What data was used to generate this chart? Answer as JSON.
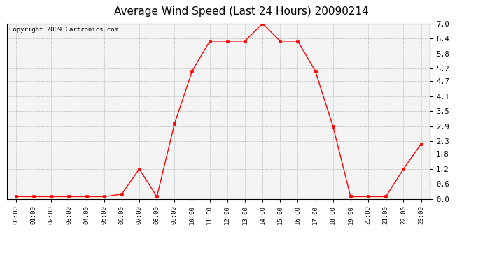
{
  "title": "Average Wind Speed (Last 24 Hours) 20090214",
  "copyright": "Copyright 2009 Cartronics.com",
  "x_labels": [
    "00:00",
    "01:00",
    "02:00",
    "03:00",
    "04:00",
    "05:00",
    "06:00",
    "07:00",
    "08:00",
    "09:00",
    "10:00",
    "11:00",
    "12:00",
    "13:00",
    "14:00",
    "15:00",
    "16:00",
    "17:00",
    "18:00",
    "19:00",
    "20:00",
    "21:00",
    "22:00",
    "23:00"
  ],
  "y_values": [
    0.1,
    0.1,
    0.1,
    0.1,
    0.1,
    0.1,
    0.2,
    1.2,
    0.1,
    3.0,
    5.1,
    6.3,
    6.3,
    6.3,
    7.0,
    6.3,
    6.3,
    5.1,
    2.9,
    0.1,
    0.1,
    0.1,
    1.2,
    2.2
  ],
  "y_ticks": [
    0.0,
    0.6,
    1.2,
    1.8,
    2.3,
    2.9,
    3.5,
    4.1,
    4.7,
    5.2,
    5.8,
    6.4,
    7.0
  ],
  "ylim": [
    0.0,
    7.0
  ],
  "line_color": "#ff0000",
  "marker": "s",
  "marker_size": 2.5,
  "bg_color": "#f4f4f4",
  "grid_color": "#bbbbbb",
  "title_fontsize": 11,
  "copyright_fontsize": 6.5,
  "tick_fontsize": 6.5,
  "ytick_fontsize": 7.5
}
